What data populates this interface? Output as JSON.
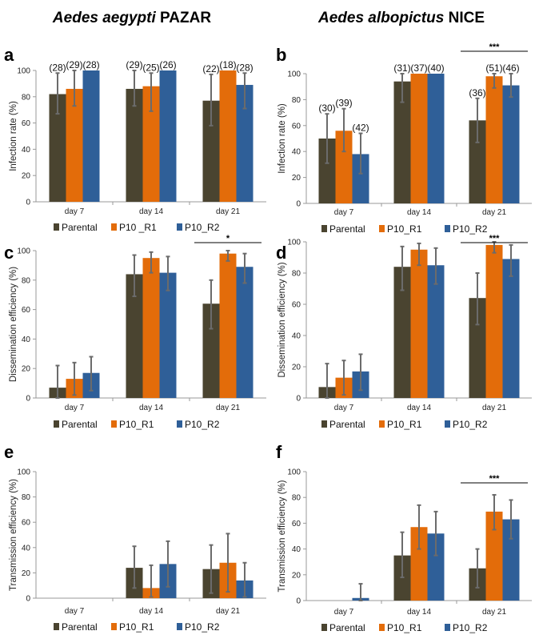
{
  "titles": {
    "left": {
      "italic": "Aedes aegypti",
      "plain": " PAZAR"
    },
    "right": {
      "italic": "Aedes albopictus",
      "plain": " NICE"
    }
  },
  "colors": {
    "Parental": "#4a4430",
    "P10_R1": "#e36c0a",
    "P10_R2": "#2f5f98",
    "error_bar": "#6b6b6b"
  },
  "chart_data": [
    {
      "panel": "a",
      "type": "bar",
      "ylabel": "Infection rate (%)",
      "ylim": [
        0,
        100
      ],
      "yticks": [
        0,
        20,
        40,
        60,
        80,
        100
      ],
      "categories": [
        "day 7",
        "day 14",
        "day 21"
      ],
      "series": [
        {
          "name": "Parental",
          "values": [
            82,
            86,
            77
          ],
          "err_low": [
            67,
            73,
            58
          ],
          "err_high": [
            98,
            100,
            97
          ],
          "n": [
            "(28)",
            "(29)",
            "(22)"
          ]
        },
        {
          "name": "P10 _R1",
          "values": [
            86,
            88,
            100
          ],
          "err_low": [
            73,
            69,
            100
          ],
          "err_high": [
            100,
            98,
            100
          ],
          "n": [
            "(29)",
            "(25)",
            "(18)"
          ]
        },
        {
          "name": "P10_R2",
          "values": [
            100,
            100,
            89
          ],
          "err_low": [
            100,
            100,
            71
          ],
          "err_high": [
            100,
            100,
            98
          ],
          "n": [
            "(28)",
            "(26)",
            "(28)"
          ]
        }
      ],
      "significance": null,
      "legend": "bottom"
    },
    {
      "panel": "b",
      "type": "bar",
      "ylabel": "Infection rate (%)",
      "ylim": [
        0,
        100
      ],
      "yticks": [
        0,
        20,
        40,
        60,
        80,
        100
      ],
      "categories": [
        "day 7",
        "day 14",
        "day 21"
      ],
      "series": [
        {
          "name": "Parental",
          "values": [
            50,
            94,
            64
          ],
          "err_low": [
            31,
            78,
            47
          ],
          "err_high": [
            69,
            100,
            81
          ],
          "n": [
            "(30)",
            "(31)",
            "(36)"
          ]
        },
        {
          "name": "P10_R1",
          "values": [
            56,
            100,
            98
          ],
          "err_low": [
            40,
            100,
            89
          ],
          "err_high": [
            73,
            100,
            100
          ],
          "n": [
            "(39)",
            "(37)",
            "(51)"
          ]
        },
        {
          "name": "P10_R2",
          "values": [
            38,
            100,
            91
          ],
          "err_low": [
            23,
            100,
            82
          ],
          "err_high": [
            54,
            100,
            100
          ],
          "n": [
            "(42)",
            "(40)",
            "(46)"
          ]
        }
      ],
      "significance": {
        "category": "day 21",
        "label": "***"
      },
      "legend": "bottom"
    },
    {
      "panel": "c",
      "type": "bar",
      "ylabel": "Dissemination efficiency (%)",
      "ylim": [
        0,
        100
      ],
      "yticks": [
        0,
        20,
        40,
        60,
        80,
        100
      ],
      "categories": [
        "day 7",
        "day 14",
        "day 21"
      ],
      "series": [
        {
          "name": "Parental",
          "values": [
            7,
            84,
            64
          ],
          "err_low": [
            0,
            69,
            47
          ],
          "err_high": [
            22,
            97,
            80
          ]
        },
        {
          "name": "P10_R1",
          "values": [
            13,
            95,
            98
          ],
          "err_low": [
            2,
            85,
            93
          ],
          "err_high": [
            24,
            99,
            100
          ]
        },
        {
          "name": "P10_R2",
          "values": [
            17,
            85,
            89
          ],
          "err_low": [
            5,
            73,
            78
          ],
          "err_high": [
            28,
            96,
            98
          ]
        }
      ],
      "significance": {
        "category": "day 21",
        "label": "*"
      },
      "legend": "bottom"
    },
    {
      "panel": "d",
      "type": "bar",
      "ylabel": "Dissemination efficiency (%)",
      "ylim": [
        0,
        100
      ],
      "yticks": [
        0,
        20,
        40,
        60,
        80,
        100
      ],
      "categories": [
        "day 7",
        "day 14",
        "day 21"
      ],
      "series": [
        {
          "name": "Parental",
          "values": [
            7,
            84,
            64
          ],
          "err_low": [
            0,
            69,
            47
          ],
          "err_high": [
            22,
            97,
            80
          ]
        },
        {
          "name": "P10_R1",
          "values": [
            13,
            95,
            98
          ],
          "err_low": [
            2,
            85,
            93
          ],
          "err_high": [
            24,
            99,
            100
          ]
        },
        {
          "name": "P10_R2",
          "values": [
            17,
            85,
            89
          ],
          "err_low": [
            5,
            73,
            78
          ],
          "err_high": [
            28,
            96,
            98
          ]
        }
      ],
      "significance": {
        "category": "day 21",
        "label": "***"
      },
      "legend": "bottom"
    },
    {
      "panel": "e",
      "type": "bar",
      "ylabel": "Transmission efficiency (%)",
      "ylim": [
        0,
        100
      ],
      "yticks": [
        0,
        20,
        40,
        60,
        80,
        100
      ],
      "categories": [
        "day 7",
        "day 14",
        "day 21"
      ],
      "series": [
        {
          "name": "Parental",
          "values": [
            0,
            24,
            23
          ],
          "err_low": [
            0,
            8,
            4
          ],
          "err_high": [
            0,
            41,
            42
          ]
        },
        {
          "name": "P10_R1",
          "values": [
            0,
            8,
            28
          ],
          "err_low": [
            0,
            1,
            5
          ],
          "err_high": [
            0,
            26,
            51
          ]
        },
        {
          "name": "P10_R2",
          "values": [
            0,
            27,
            14
          ],
          "err_low": [
            0,
            9,
            1
          ],
          "err_high": [
            0,
            45,
            28
          ]
        }
      ],
      "significance": null,
      "legend": "bottom"
    },
    {
      "panel": "f",
      "type": "bar",
      "ylabel": "Transmission efficiency (%)",
      "ylim": [
        0,
        100
      ],
      "yticks": [
        0,
        20,
        40,
        60,
        80,
        100
      ],
      "categories": [
        "day 7",
        "day 14",
        "day 21"
      ],
      "series": [
        {
          "name": "Parental",
          "values": [
            0,
            35,
            25
          ],
          "err_low": [
            0,
            18,
            10
          ],
          "err_high": [
            0,
            53,
            40
          ]
        },
        {
          "name": "P10_R1",
          "values": [
            0,
            57,
            69
          ],
          "err_low": [
            0,
            40,
            55
          ],
          "err_high": [
            0,
            74,
            82
          ]
        },
        {
          "name": "P10_R2",
          "values": [
            2,
            52,
            63
          ],
          "err_low": [
            0,
            35,
            48
          ],
          "err_high": [
            13,
            69,
            78
          ]
        }
      ],
      "significance": {
        "category": "day 21",
        "label": "***"
      },
      "legend": "bottom"
    }
  ]
}
